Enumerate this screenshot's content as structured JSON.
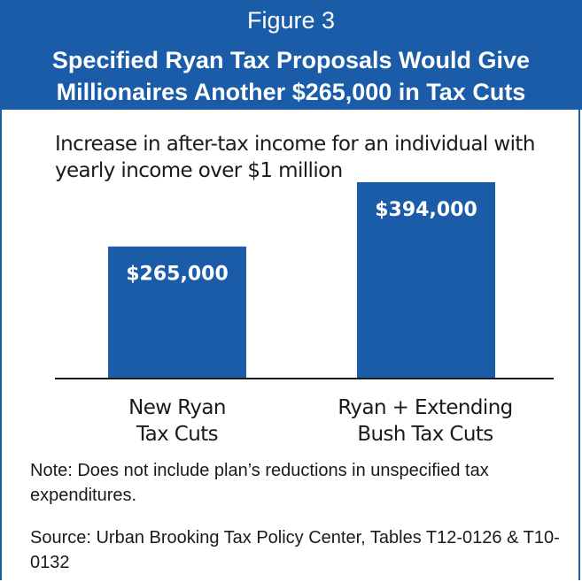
{
  "figure_label": "Figure 3",
  "title_line1": "Specified Ryan Tax Proposals Would Give",
  "title_line2": "Millionaires Another $265,000 in Tax Cuts",
  "note": "Note: Does not include plan’s reductions in unspecified tax expenditures.",
  "source": "Source: Urban Brooking Tax Policy Center, Tables T12-0126 & T10-0132",
  "colors": {
    "header": "#1a5ca8",
    "bar": "#1a5ca8"
  },
  "chart_data": {
    "type": "bar",
    "title": "Increase in after-tax income for an individual with yearly income over $1 million",
    "categories": [
      "New Ryan Tax Cuts",
      "Ryan + Extending Bush Tax Cuts"
    ],
    "category_lines": [
      [
        "New Ryan",
        "Tax Cuts"
      ],
      [
        "Ryan + Extending",
        "Bush Tax Cuts"
      ]
    ],
    "values": [
      265000,
      394000
    ],
    "data_labels": [
      "$265,000",
      "$394,000"
    ],
    "xlabel": "",
    "ylabel": "",
    "grid": false
  }
}
